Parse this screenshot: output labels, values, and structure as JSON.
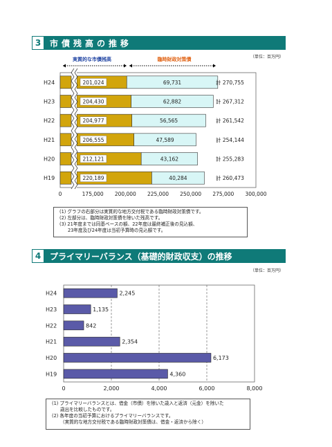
{
  "section3": {
    "number": "3",
    "title": "市債残高の推移",
    "unit": "（単位：百万円）",
    "legend_real": "実質的な市債残高",
    "legend_special": "臨時財政対策債",
    "notes": [
      "(1)  グラフの右部分は実質的な地方交付税である臨時財政対策債です。",
      "(2)  左部分は、臨時財政対策債を除いた残高です。",
      "(3)  21年度までは同基ベースの額、22年度は最終補正後の見込額、",
      "23年度及び24年度は当初予算時の見込額です。"
    ]
  },
  "section4": {
    "number": "4",
    "title": "プライマリーバランス（基礎的財政収支）の推移",
    "unit": "（単位：百万円）",
    "notes": [
      "(1)  プライマリーバランスとは、借金（市債）を除いた歳入と返済（元金）を除いた",
      "歳出を比較したものです。",
      "(2)  各年度の当初予算におけるプライマリーバランスです。",
      "（実質的な地方交付税である臨時財政対策債は、借金・返済から除く）"
    ]
  },
  "chart_data": [
    {
      "type": "bar",
      "orientation": "horizontal",
      "stacked": true,
      "categories": [
        "H24",
        "H23",
        "H22",
        "H21",
        "H20",
        "H19"
      ],
      "series": [
        {
          "name": "実質的な市債残高",
          "values": [
            201024,
            204430,
            204977,
            206555,
            212121,
            220189
          ],
          "labels": [
            "201,024",
            "204,430",
            "204,977",
            "206,555",
            "212,121",
            "220,189"
          ],
          "color": "#d2a50c"
        },
        {
          "name": "臨時財政対策債",
          "values": [
            69731,
            62882,
            56565,
            47589,
            43162,
            40284
          ],
          "labels": [
            "69,731",
            "62,882",
            "56,565",
            "47,589",
            "43,162",
            "40,284"
          ],
          "color": "#d8f6f6"
        }
      ],
      "totals": [
        "計 270,755",
        "計 267,312",
        "計 261,542",
        "計 254,144",
        "計 255,283",
        "計 260,473"
      ],
      "xticks": [
        "0",
        "175,000",
        "200,000",
        "225,000",
        "250,000",
        "275,000",
        "300,000"
      ],
      "axis_break": true,
      "xlim": [
        150000,
        300000
      ]
    },
    {
      "type": "bar",
      "orientation": "horizontal",
      "categories": [
        "H24",
        "H23",
        "H22",
        "H21",
        "H20",
        "H19"
      ],
      "values": [
        2245,
        1135,
        842,
        2354,
        6173,
        4360
      ],
      "labels": [
        "2,245",
        "1,135",
        "842",
        "2,354",
        "6,173",
        "4,360"
      ],
      "xticks": [
        "0",
        "2,000",
        "4,000",
        "6,000",
        "8,000"
      ],
      "xlim": [
        0,
        8000
      ],
      "color": "#5a5aa8",
      "grid": true
    }
  ]
}
